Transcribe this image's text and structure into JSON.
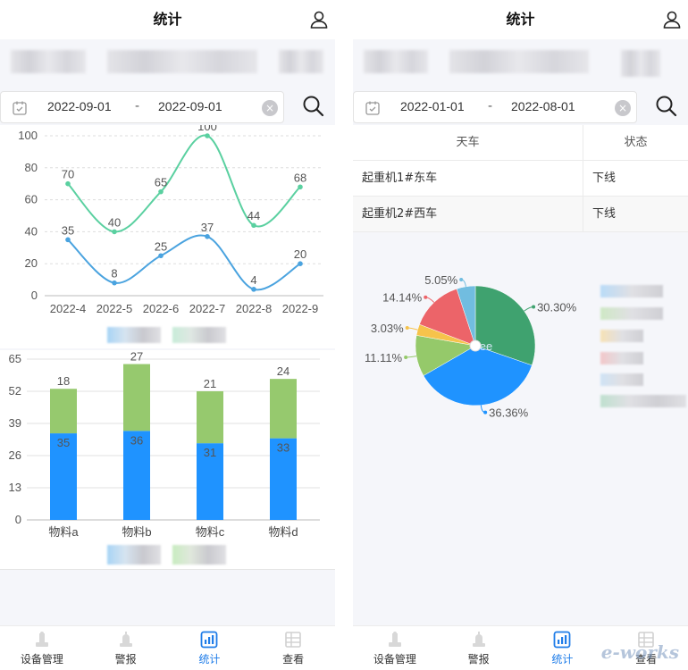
{
  "left": {
    "title": "统计",
    "date_start": "2022-09-01",
    "date_sep": "-",
    "date_end": "2022-09-01",
    "nav": [
      {
        "label": "设备管理",
        "active": false
      },
      {
        "label": "警报",
        "active": false
      },
      {
        "label": "统计",
        "active": true
      },
      {
        "label": "查看",
        "active": false
      }
    ]
  },
  "right": {
    "title": "统计",
    "date_start": "2022-01-01",
    "date_sep": "-",
    "date_end": "2022-08-01",
    "table": {
      "headers": [
        "天车",
        "状态"
      ],
      "rows": [
        [
          "起重机1#东车",
          "下线"
        ],
        [
          "起重机2#西车",
          "下线"
        ]
      ]
    },
    "nav": [
      {
        "label": "设备管理",
        "active": false
      },
      {
        "label": "警报",
        "active": false
      },
      {
        "label": "统计",
        "active": true
      },
      {
        "label": "查看",
        "active": false
      }
    ]
  },
  "watermark": "e-works",
  "chart_data": [
    {
      "type": "line",
      "categories": [
        "2022-4",
        "2022-5",
        "2022-6",
        "2022-7",
        "2022-8",
        "2022-9"
      ],
      "ylim": [
        0,
        100
      ],
      "yticks": [
        0,
        20,
        40,
        60,
        80,
        100
      ],
      "series": [
        {
          "values": [
            70,
            40,
            65,
            100,
            44,
            68
          ],
          "color": "#5ad0a0"
        },
        {
          "values": [
            35,
            8,
            25,
            37,
            4,
            20
          ],
          "color": "#4aa3df"
        }
      ],
      "grid": true,
      "legend": "bottom"
    },
    {
      "type": "bar",
      "stacked": true,
      "categories": [
        "物料a",
        "物料b",
        "物料c",
        "物料d"
      ],
      "ylim": [
        0,
        65
      ],
      "yticks": [
        0,
        13,
        26,
        39,
        52,
        65
      ],
      "series": [
        {
          "values": [
            35,
            36,
            31,
            33
          ],
          "color": "#1f93ff"
        },
        {
          "values": [
            18,
            27,
            21,
            24
          ],
          "color": "#96c96e"
        }
      ],
      "grid": true,
      "legend": "bottom"
    },
    {
      "type": "pie",
      "center_text": "ee",
      "slices": [
        {
          "label": "30.30%",
          "value": 30.3,
          "color": "#3fa26f"
        },
        {
          "label": "36.36%",
          "value": 36.36,
          "color": "#1f93ff"
        },
        {
          "label": "11.11%",
          "value": 11.11,
          "color": "#95c96a"
        },
        {
          "label": "3.03%",
          "value": 3.03,
          "color": "#f6c34b"
        },
        {
          "label": "14.14%",
          "value": 14.14,
          "color": "#ec6469"
        },
        {
          "label": "5.05%",
          "value": 5.05,
          "color": "#71bde0"
        }
      ],
      "legend": "right"
    }
  ]
}
